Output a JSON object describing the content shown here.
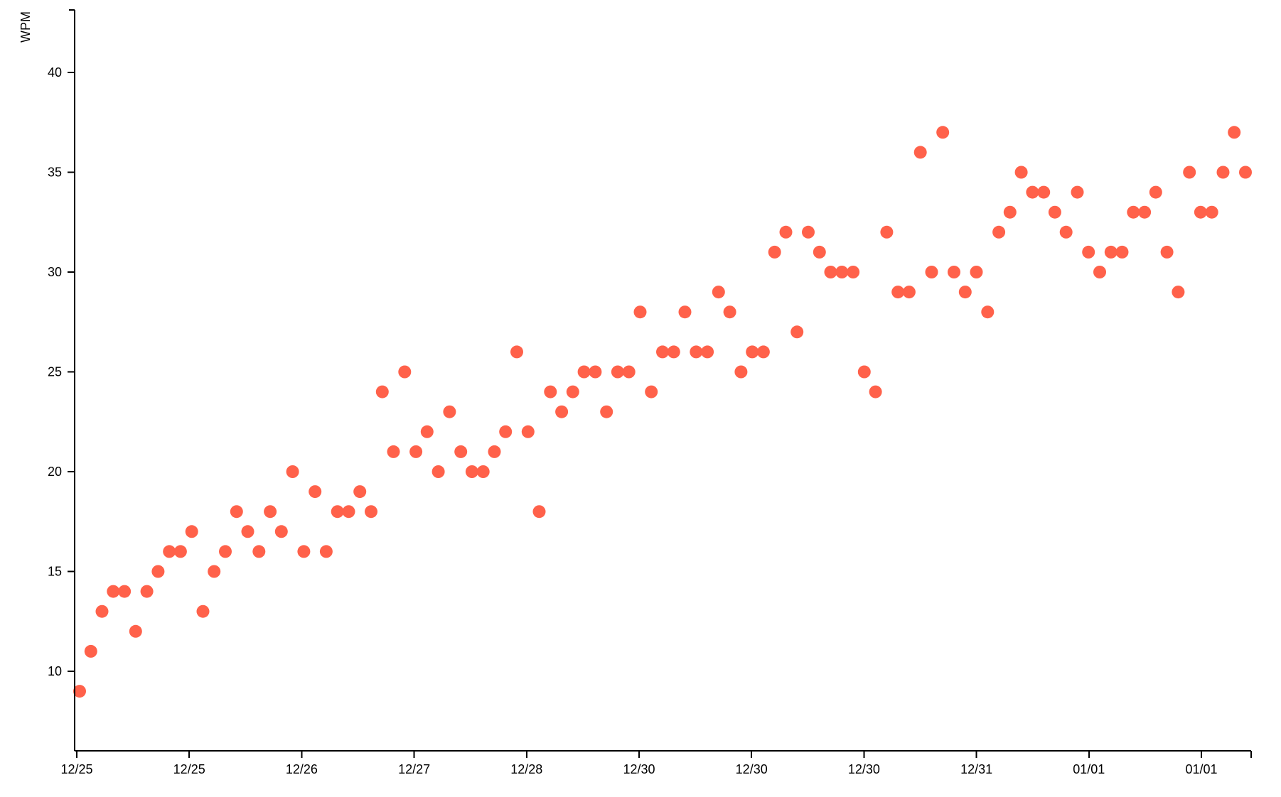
{
  "colors": {
    "point": "#ff614a",
    "axis": "#000000",
    "background": "#ffffff"
  },
  "chart_data": {
    "type": "scatter",
    "title": "",
    "xlabel": "",
    "ylabel": "WPM",
    "grid": false,
    "legend": "none",
    "x_tick_labels": [
      "12/25",
      "12/25",
      "12/26",
      "12/27",
      "12/28",
      "12/30",
      "12/30",
      "12/30",
      "12/31",
      "01/01",
      "01/01"
    ],
    "y_ticks": [
      10,
      15,
      20,
      25,
      30,
      35,
      40
    ],
    "ylim": [
      6,
      43
    ],
    "series": [
      {
        "values": [
          9,
          11,
          13,
          14,
          14,
          12,
          14,
          15,
          16,
          16,
          17,
          13,
          15,
          16,
          18,
          17,
          16,
          18,
          17,
          20,
          16,
          19,
          16,
          18,
          18,
          19,
          18,
          24,
          21,
          25,
          21,
          22,
          20,
          23,
          21,
          20,
          20,
          21,
          22,
          26,
          22,
          18,
          24,
          23,
          24,
          25,
          25,
          23,
          25,
          25,
          28,
          24,
          26,
          26,
          28,
          26,
          26,
          29,
          28,
          25,
          26,
          26,
          31,
          32,
          27,
          32,
          31,
          30,
          30,
          30,
          25,
          24,
          32,
          29,
          29,
          36,
          30,
          37,
          30,
          29,
          30,
          28,
          32,
          33,
          35,
          34,
          34,
          33,
          32,
          34,
          31,
          30,
          31,
          31,
          33,
          33,
          34,
          31,
          29,
          35,
          33,
          33,
          35,
          37,
          35
        ]
      }
    ]
  }
}
